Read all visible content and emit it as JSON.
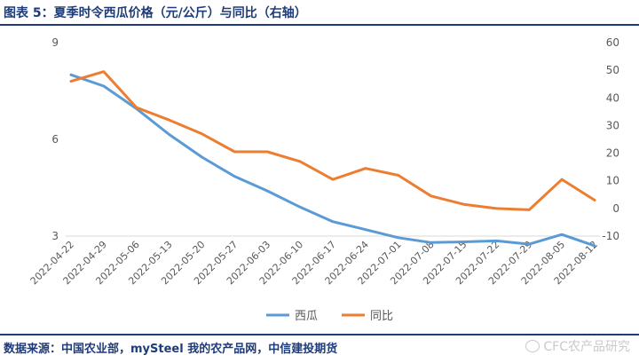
{
  "header": {
    "title": "图表 5：夏季时令西瓜价格（元/公斤）与同比（右轴）"
  },
  "footer": {
    "source": "数据来源：中国农业部，mySteel 我的农产品网，中信建投期货",
    "watermark": "CFC农产品研究"
  },
  "colors": {
    "series_1": "#5b9bd5",
    "series_2": "#ed7d31",
    "grid": "#d9d9d9",
    "text": "#595959"
  },
  "chart_data": {
    "type": "line",
    "categories": [
      "2022-04-22",
      "2022-04-29",
      "2022-05-06",
      "2022-05-13",
      "2022-05-20",
      "2022-05-27",
      "2022-06-03",
      "2022-06-10",
      "2022-06-17",
      "2022-06-24",
      "2022-07-01",
      "2022-07-08",
      "2022-07-15",
      "2022-07-22",
      "2022-07-29",
      "2022-08-05",
      "2022-08-12"
    ],
    "series": [
      {
        "name": "西瓜",
        "axis": "left",
        "values": [
          8.0,
          7.65,
          6.95,
          6.15,
          5.45,
          4.85,
          4.4,
          3.9,
          3.45,
          3.2,
          2.95,
          2.8,
          2.82,
          2.85,
          2.75,
          3.05,
          2.7
        ]
      },
      {
        "name": "同比",
        "axis": "right",
        "values": [
          46,
          49.5,
          36.5,
          32,
          27,
          20.5,
          20.5,
          17,
          10.5,
          14.5,
          12,
          4.5,
          1.5,
          0,
          -0.5,
          10.5,
          3
        ]
      }
    ],
    "y_left": {
      "ticks": [
        3,
        6,
        9
      ],
      "range": [
        3,
        9
      ]
    },
    "y_right": {
      "ticks": [
        -10,
        0,
        10,
        20,
        30,
        40,
        50,
        60
      ],
      "range": [
        -10,
        60
      ]
    },
    "legend": "bottom-center",
    "grid": false
  }
}
